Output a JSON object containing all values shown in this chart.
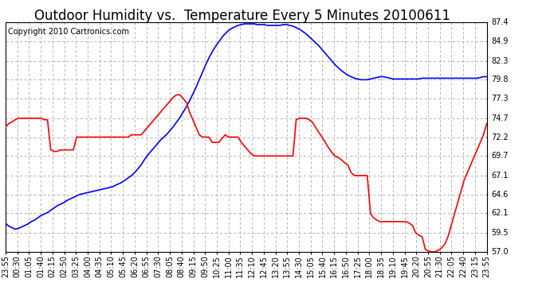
{
  "title": "Outdoor Humidity vs.  Temperature Every 5 Minutes 20100611",
  "copyright": "Copyright 2010 Cartronics.com",
  "y_ticks": [
    57.0,
    59.5,
    62.1,
    64.6,
    67.1,
    69.7,
    72.2,
    74.7,
    77.3,
    79.8,
    82.3,
    84.9,
    87.4
  ],
  "ylim": [
    57.0,
    87.4
  ],
  "x_labels": [
    "23:55",
    "00:30",
    "01:05",
    "01:40",
    "02:15",
    "02:50",
    "03:25",
    "04:00",
    "04:35",
    "05:10",
    "05:45",
    "06:20",
    "06:55",
    "07:30",
    "08:05",
    "08:40",
    "09:15",
    "09:50",
    "10:25",
    "11:00",
    "11:35",
    "12:10",
    "12:45",
    "13:20",
    "13:55",
    "14:30",
    "15:05",
    "15:40",
    "16:15",
    "16:50",
    "17:25",
    "18:00",
    "18:35",
    "19:10",
    "19:45",
    "20:20",
    "20:55",
    "21:30",
    "22:05",
    "22:40",
    "23:15",
    "23:55"
  ],
  "blue_color": "#0000FF",
  "red_color": "#FF0000",
  "bg_color": "#FFFFFF",
  "grid_color": "#AAAAAA",
  "title_color": "#000000",
  "copyright_color": "#000000",
  "title_fontsize": 12,
  "copyright_fontsize": 7,
  "tick_fontsize": 7,
  "line_width": 1.2,
  "blue_data": [
    60.8,
    60.4,
    60.2,
    60.0,
    60.1,
    60.3,
    60.5,
    60.7,
    61.0,
    61.2,
    61.5,
    61.8,
    62.0,
    62.2,
    62.5,
    62.8,
    63.1,
    63.3,
    63.5,
    63.8,
    64.0,
    64.2,
    64.4,
    64.6,
    64.7,
    64.8,
    64.9,
    65.0,
    65.1,
    65.2,
    65.3,
    65.4,
    65.5,
    65.6,
    65.8,
    66.0,
    66.2,
    66.5,
    66.8,
    67.1,
    67.5,
    68.0,
    68.5,
    69.2,
    69.8,
    70.3,
    70.8,
    71.3,
    71.8,
    72.2,
    72.6,
    73.1,
    73.6,
    74.2,
    74.8,
    75.5,
    76.2,
    77.0,
    77.9,
    78.8,
    79.8,
    80.8,
    81.8,
    82.7,
    83.5,
    84.2,
    84.8,
    85.4,
    85.9,
    86.3,
    86.6,
    86.8,
    87.0,
    87.1,
    87.2,
    87.2,
    87.2,
    87.2,
    87.1,
    87.1,
    87.1,
    87.0,
    87.0,
    87.0,
    87.0,
    87.0,
    87.1,
    87.1,
    87.0,
    86.9,
    86.7,
    86.5,
    86.2,
    85.9,
    85.5,
    85.1,
    84.7,
    84.3,
    83.8,
    83.3,
    82.8,
    82.3,
    81.8,
    81.4,
    81.0,
    80.7,
    80.4,
    80.2,
    80.0,
    79.9,
    79.8,
    79.8,
    79.8,
    79.9,
    80.0,
    80.1,
    80.2,
    80.2,
    80.1,
    80.0,
    79.9,
    79.9,
    79.9,
    79.9,
    79.9,
    79.9,
    79.9,
    79.9,
    79.9,
    80.0,
    80.0,
    80.0,
    80.0,
    80.0,
    80.0,
    80.0,
    80.0,
    80.0,
    80.0,
    80.0,
    80.0,
    80.0,
    80.0,
    80.0,
    80.0,
    80.0,
    80.0,
    80.1,
    80.2,
    80.2
  ],
  "red_data": [
    73.5,
    74.0,
    74.2,
    74.5,
    74.7,
    74.7,
    74.7,
    74.7,
    74.7,
    74.7,
    74.7,
    74.7,
    74.5,
    74.5,
    70.5,
    70.3,
    70.3,
    70.5,
    70.5,
    70.5,
    70.5,
    70.5,
    72.2,
    72.2,
    72.2,
    72.2,
    72.2,
    72.2,
    72.2,
    72.2,
    72.2,
    72.2,
    72.2,
    72.2,
    72.2,
    72.2,
    72.2,
    72.2,
    72.2,
    72.5,
    72.5,
    72.5,
    72.5,
    73.0,
    73.5,
    74.0,
    74.5,
    75.0,
    75.5,
    76.0,
    76.5,
    77.0,
    77.5,
    77.8,
    77.8,
    77.3,
    76.8,
    75.5,
    74.5,
    73.5,
    72.5,
    72.2,
    72.2,
    72.2,
    71.5,
    71.5,
    71.5,
    72.0,
    72.5,
    72.2,
    72.2,
    72.2,
    72.2,
    71.5,
    71.0,
    70.5,
    70.0,
    69.7,
    69.7,
    69.7,
    69.7,
    69.7,
    69.7,
    69.7,
    69.7,
    69.7,
    69.7,
    69.7,
    69.7,
    69.7,
    74.5,
    74.7,
    74.7,
    74.7,
    74.5,
    74.2,
    73.5,
    72.8,
    72.2,
    71.5,
    70.8,
    70.2,
    69.7,
    69.5,
    69.2,
    68.8,
    68.5,
    67.5,
    67.1,
    67.1,
    67.1,
    67.1,
    67.1,
    62.1,
    61.5,
    61.2,
    61.0,
    61.0,
    61.0,
    61.0,
    61.0,
    61.0,
    61.0,
    61.0,
    61.0,
    60.8,
    60.5,
    59.5,
    59.2,
    59.0,
    57.3,
    57.1,
    57.0,
    57.0,
    57.2,
    57.5,
    58.0,
    59.0,
    60.5,
    62.0,
    63.5,
    65.0,
    66.5,
    67.5,
    68.5,
    69.5,
    70.5,
    71.5,
    72.5,
    74.0
  ]
}
